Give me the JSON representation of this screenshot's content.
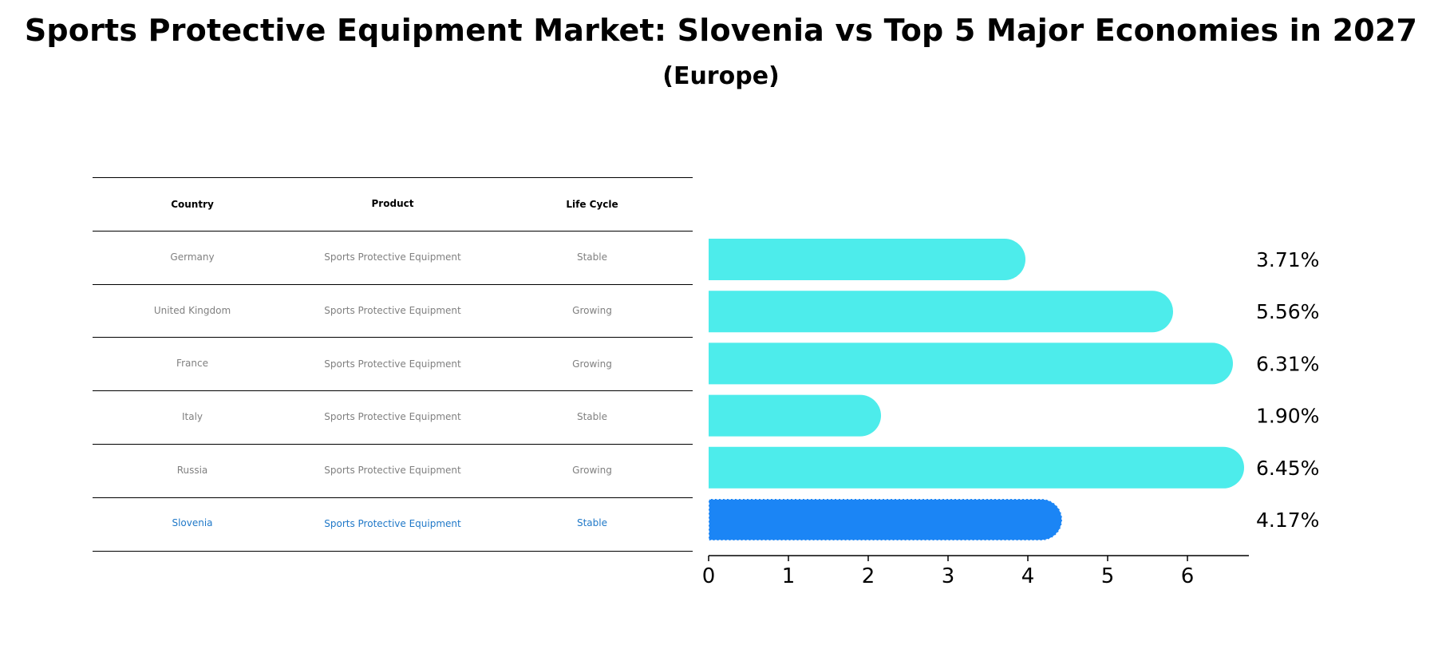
{
  "title": "Sports Protective Equipment Market: Slovenia vs Top 5 Major Economies in 2027",
  "subtitle": "(Europe)",
  "table": {
    "headers": [
      "Country",
      "Product",
      "Life Cycle"
    ],
    "rows": [
      [
        "Germany",
        "Sports Protective Equipment",
        "Stable"
      ],
      [
        "United Kingdom",
        "Sports Protective Equipment",
        "Growing"
      ],
      [
        "France",
        "Sports Protective Equipment",
        "Growing"
      ],
      [
        "Italy",
        "Sports Protective Equipment",
        "Stable"
      ],
      [
        "Russia",
        "Sports Protective Equipment",
        "Growing"
      ],
      [
        "Slovenia",
        "Sports Protective Equipment",
        "Stable"
      ]
    ],
    "highlight_row": 5,
    "highlight_color": "#1f78c8"
  },
  "chart_data": {
    "type": "bar",
    "orientation": "horizontal",
    "categories": [
      "Germany",
      "United Kingdom",
      "France",
      "Italy",
      "Russia",
      "Slovenia"
    ],
    "values": [
      3.71,
      5.56,
      6.31,
      1.9,
      6.45,
      4.17
    ],
    "value_labels": [
      "3.71%",
      "5.56%",
      "6.31%",
      "1.90%",
      "6.45%",
      "4.17%"
    ],
    "xlim": [
      0,
      6.77
    ],
    "xticks": [
      0,
      1,
      2,
      3,
      4,
      5,
      6
    ],
    "bar_color": "#4deceb",
    "highlight_color": "#1b85f5",
    "highlight_index": 5,
    "xlabel": "",
    "ylabel": ""
  }
}
